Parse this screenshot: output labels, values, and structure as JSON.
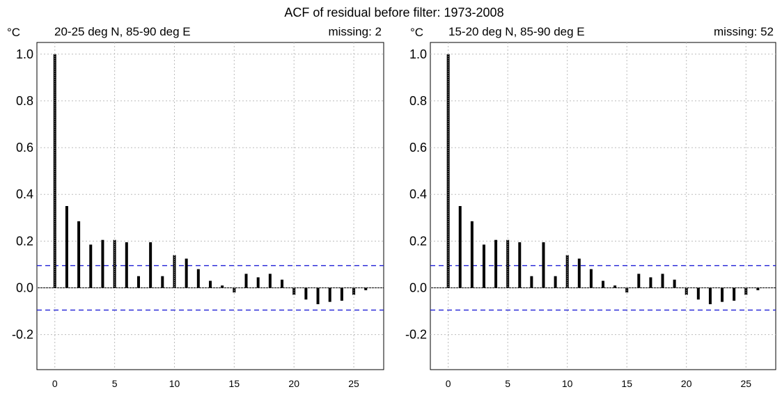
{
  "figure": {
    "title": "ACF of residual before filter: 1973-2008",
    "unit_label": "°C"
  },
  "chart_data": [
    {
      "type": "bar",
      "title": "20-25 deg N, 85-90 deg E",
      "annotation": "missing: 2",
      "xlim": [
        -1.5,
        27.5
      ],
      "ylim": [
        -0.35,
        1.05
      ],
      "xticks": [
        0,
        5,
        10,
        15,
        20,
        25
      ],
      "yticks": [
        1.0,
        0.8,
        0.6,
        0.4,
        0.2,
        0.0,
        -0.2
      ],
      "ytick_labels": [
        "1.0",
        "0.8",
        "0.6",
        "0.4",
        "0.2",
        "0.0",
        "-0.2"
      ],
      "grid": true,
      "confidence_band": 0.095,
      "lags": [
        0,
        1,
        2,
        3,
        4,
        5,
        6,
        7,
        8,
        9,
        10,
        11,
        12,
        13,
        14,
        15,
        16,
        17,
        18,
        19,
        20,
        21,
        22,
        23,
        24,
        25,
        26
      ],
      "values": [
        1.0,
        0.35,
        0.285,
        0.185,
        0.205,
        0.205,
        0.195,
        0.05,
        0.195,
        0.05,
        0.14,
        0.125,
        0.08,
        0.03,
        0.01,
        -0.02,
        0.06,
        0.045,
        0.06,
        0.035,
        -0.03,
        -0.05,
        -0.07,
        -0.06,
        -0.055,
        -0.03,
        -0.01
      ]
    },
    {
      "type": "bar",
      "title": "15-20 deg N, 85-90 deg E",
      "annotation": "missing: 52",
      "xlim": [
        -1.5,
        27.5
      ],
      "ylim": [
        -0.35,
        1.05
      ],
      "xticks": [
        0,
        5,
        10,
        15,
        20,
        25
      ],
      "yticks": [
        1.0,
        0.8,
        0.6,
        0.4,
        0.2,
        0.0,
        -0.2
      ],
      "ytick_labels": [
        "1.0",
        "0.8",
        "0.6",
        "0.4",
        "0.2",
        "0.0",
        "-0.2"
      ],
      "grid": true,
      "confidence_band": 0.095,
      "lags": [
        0,
        1,
        2,
        3,
        4,
        5,
        6,
        7,
        8,
        9,
        10,
        11,
        12,
        13,
        14,
        15,
        16,
        17,
        18,
        19,
        20,
        21,
        22,
        23,
        24,
        25,
        26
      ],
      "values": [
        1.0,
        0.35,
        0.285,
        0.185,
        0.205,
        0.205,
        0.195,
        0.05,
        0.195,
        0.05,
        0.14,
        0.125,
        0.08,
        0.03,
        0.01,
        -0.02,
        0.06,
        0.045,
        0.06,
        0.035,
        -0.03,
        -0.05,
        -0.07,
        -0.06,
        -0.055,
        -0.03,
        -0.01
      ]
    }
  ]
}
